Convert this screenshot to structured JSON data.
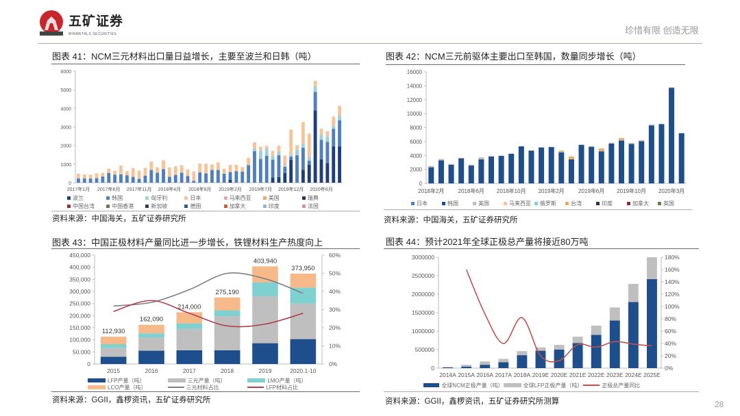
{
  "header": {
    "brand": "五矿证券",
    "brand_en": "MINMETALS SECURITIES",
    "tagline": "珍惜有限  创造无限",
    "logo_text": "MINMETALS"
  },
  "page_number": "28",
  "panels": [
    {
      "title": "图表 41：NCM三元材料出口量日益增长，主要至波兰和日韩（吨）",
      "source": "资料来源：中国海关，五矿证券研究所"
    },
    {
      "title": "图表 42：NCM三元前驱体主要出口至韩国，数量同步增长（吨）",
      "source": "资料来源：中国海关，五矿证券研究所"
    },
    {
      "title": "图表 43：中国正极材料产量同比进一步增长，铁锂材料生产热度向上",
      "source": "资料来源：GGII，鑫椤资讯，五矿证券研究所"
    },
    {
      "title": "图表 44：预计2021年全球正极总产量将接近80万吨",
      "source": "资料来源：GGII，鑫椤资讯，五矿证券研究所测算"
    }
  ],
  "chart_data": [
    {
      "type": "bar",
      "stacked": true,
      "ylim": [
        0,
        6000
      ],
      "yticks": [
        "0",
        "1000",
        "2000",
        "3000",
        "4000",
        "5000",
        "6000"
      ],
      "tick_labels": [
        "2017年1月",
        "2017年6月",
        "2017年11月",
        "2018年4月",
        "2018年9月",
        "2019年2月",
        "2019年7月",
        "2019年12月",
        "2020年6月"
      ],
      "legend_placement": "bottom",
      "legend": [
        {
          "name": "波兰",
          "color": "#1f3f7a"
        },
        {
          "name": "韩国",
          "color": "#4f7fbf"
        },
        {
          "name": "匈牙利",
          "color": "#9fd0d8"
        },
        {
          "name": "日本",
          "color": "#f5c49a"
        },
        {
          "name": "马来西亚",
          "color": "#e6a3ad"
        },
        {
          "name": "美国",
          "color": "#f0a860"
        },
        {
          "name": "瑞典",
          "color": "#2a3550"
        },
        {
          "name": "中国台湾",
          "color": "#a0303a"
        },
        {
          "name": "中国香港",
          "color": "#6b7b50"
        },
        {
          "name": "新加坡",
          "color": "#3a3a60"
        },
        {
          "name": "德国",
          "color": "#2d5f8a"
        },
        {
          "name": "加拿大",
          "color": "#c8603a"
        },
        {
          "name": "印度",
          "color": "#8fb0e0"
        },
        {
          "name": "法国",
          "color": "#d890a0"
        }
      ],
      "series": [
        {
          "name": "波兰",
          "color": "#1f3f7a",
          "values": [
            0,
            0,
            0,
            0,
            0,
            0,
            0,
            0,
            0,
            0,
            0,
            0,
            0,
            0,
            0,
            0,
            0,
            0,
            0,
            0,
            0,
            0,
            0,
            0,
            0,
            150,
            0,
            0,
            0,
            0,
            0,
            0,
            280,
            300,
            520,
            1230,
            0,
            680,
            960,
            3880,
            1260,
            1060,
            1950,
            1950
          ]
        },
        {
          "name": "韩国",
          "color": "#4f7fbf",
          "values": [
            230,
            230,
            230,
            240,
            330,
            520,
            430,
            450,
            400,
            310,
            210,
            380,
            680,
            540,
            730,
            320,
            420,
            540,
            360,
            100,
            550,
            500,
            680,
            680,
            480,
            420,
            620,
            600,
            940,
            1700,
            1270,
            1450,
            960,
            1180,
            330,
            170,
            1480,
            1200,
            220,
            1000,
            1040,
            1130,
            950,
            1400
          ]
        },
        {
          "name": "匈牙利",
          "color": "#9fd0d8",
          "values": [
            0,
            0,
            0,
            0,
            0,
            0,
            0,
            0,
            0,
            0,
            0,
            0,
            0,
            0,
            0,
            0,
            0,
            0,
            0,
            0,
            0,
            0,
            0,
            0,
            0,
            0,
            0,
            0,
            0,
            150,
            450,
            400,
            200,
            200,
            100,
            100,
            300,
            200,
            200,
            300,
            300,
            300,
            150,
            300
          ]
        },
        {
          "name": "日本",
          "color": "#f5c49a",
          "values": [
            250,
            220,
            200,
            260,
            200,
            240,
            210,
            470,
            220,
            470,
            440,
            420,
            450,
            290,
            470,
            500,
            460,
            400,
            360,
            500,
            480,
            520,
            300,
            410,
            270,
            390,
            340,
            240,
            400,
            330,
            210,
            130,
            280,
            310,
            510,
            1360,
            240,
            1180,
            1260,
            300,
            300,
            280,
            510,
            480
          ]
        }
      ]
    },
    {
      "type": "bar",
      "stacked": true,
      "ylim": [
        0,
        16000
      ],
      "yticks": [
        "0",
        "2000",
        "4000",
        "6000",
        "8000",
        "10000",
        "12000",
        "14000",
        "16000"
      ],
      "tick_labels": [
        "2018年2月",
        "2018年6月",
        "2018年10月",
        "2019年2月",
        "2019年6月",
        "2019年10月",
        "2020年3月"
      ],
      "legend_placement": "bottom",
      "legend": [
        {
          "name": "日本",
          "color": "#4f7fbf"
        },
        {
          "name": "韩国",
          "color": "#1f4e8c"
        },
        {
          "name": "美国",
          "color": "#bfbfbf"
        },
        {
          "name": "马来西亚",
          "color": "#f5c49a"
        },
        {
          "name": "俄罗斯",
          "color": "#7fd1d1"
        },
        {
          "name": "台湾",
          "color": "#f0a860"
        },
        {
          "name": "印度",
          "color": "#2a3550"
        },
        {
          "name": "加拿大",
          "color": "#8a2a3a"
        },
        {
          "name": "英国",
          "color": "#6b7b50"
        }
      ],
      "series": [
        {
          "name": "韩国",
          "color": "#1f4e8c",
          "values": [
            2300,
            3300,
            2650,
            3600,
            2550,
            3450,
            3850,
            3950,
            4250,
            5300,
            4700,
            5150,
            5200,
            4450,
            3450,
            5500,
            5250,
            4600,
            5700,
            6150,
            5650,
            6050,
            8300,
            8500,
            13700,
            7200
          ]
        },
        {
          "name": "美国",
          "color": "#bfbfbf",
          "values": [
            200,
            200,
            150,
            50,
            150,
            300,
            100,
            50,
            0,
            50,
            0,
            0,
            50,
            150,
            0,
            100,
            50,
            100,
            150,
            100,
            150,
            150,
            150,
            50,
            100,
            0
          ]
        },
        {
          "name": "台湾",
          "color": "#f0a860",
          "values": [
            0,
            0,
            0,
            0,
            0,
            0,
            0,
            0,
            0,
            0,
            0,
            0,
            0,
            100,
            400,
            0,
            0,
            300,
            0,
            250,
            0,
            0,
            0,
            0,
            0,
            0
          ]
        }
      ]
    },
    {
      "type": "bar",
      "stacked": true,
      "categories": [
        "2015",
        "2016",
        "2017",
        "2018",
        "2019",
        "2020.1-10"
      ],
      "ylim": [
        0,
        450000
      ],
      "yticks": [
        "0",
        "50,000",
        "100,000",
        "150,000",
        "200,000",
        "250,000",
        "300,000",
        "350,000",
        "400,000",
        "450,000"
      ],
      "y2lim": [
        0,
        0.6
      ],
      "y2ticks": [
        "0%",
        "10%",
        "20%",
        "30%",
        "40%",
        "50%",
        "60%"
      ],
      "totals": [
        "112,930",
        "162,090",
        "214,000",
        "275,190",
        "403,940",
        "373,950"
      ],
      "legend_placement": "bottom",
      "series": [
        {
          "name": "LFP产量（吨）",
          "color": "#1f4e8c",
          "values": [
            30000,
            55000,
            57000,
            57000,
            86000,
            103000
          ]
        },
        {
          "name": "三元产量（吨）",
          "color": "#bfbfbf",
          "values": [
            36000,
            55000,
            88000,
            141000,
            194000,
            147000
          ]
        },
        {
          "name": "LMO产量（吨）",
          "color": "#7fd1d1",
          "values": [
            16000,
            17000,
            23000,
            24000,
            58000,
            66000
          ]
        },
        {
          "name": "LCO产量（吨）",
          "color": "#f8b98a",
          "values": [
            30930,
            35090,
            46000,
            53190,
            65940,
            57950
          ]
        }
      ],
      "lines": [
        {
          "name": "三元材料占比",
          "color": "#7f7f7f",
          "axis": "right",
          "values": [
            0.32,
            0.34,
            0.41,
            0.5,
            0.47,
            0.39
          ]
        },
        {
          "name": "LFP材料占比",
          "color": "#b04050",
          "axis": "right",
          "values": [
            0.29,
            0.35,
            0.28,
            0.21,
            0.22,
            0.28
          ]
        }
      ]
    },
    {
      "type": "bar",
      "stacked": true,
      "categories": [
        "2014A",
        "2015A",
        "2016A",
        "2017A",
        "2018A",
        "2019E",
        "2020E",
        "2021E",
        "2022E",
        "2023E",
        "2024E",
        "2025E"
      ],
      "ylim": [
        0,
        3000000
      ],
      "yticks": [
        "0",
        "500000",
        "1000000",
        "1500000",
        "2000000",
        "2500000",
        "3000000"
      ],
      "y2lim": [
        0,
        1.8
      ],
      "y2ticks": [
        "0%",
        "20%",
        "40%",
        "60%",
        "80%",
        "100%",
        "120%",
        "140%",
        "160%",
        "180%"
      ],
      "legend_placement": "bottom",
      "series": [
        {
          "name": "全球NCM正极产量（吨）",
          "color": "#1f4e8c",
          "values": [
            20000,
            40000,
            90000,
            160000,
            350000,
            470000,
            500000,
            680000,
            900000,
            1290000,
            1790000,
            2410000
          ]
        },
        {
          "name": "全球LFP正极产量（吨）",
          "color": "#bfbfbf",
          "values": [
            10000,
            50000,
            90000,
            90000,
            110000,
            90000,
            130000,
            170000,
            250000,
            350000,
            490000,
            590000
          ]
        }
      ],
      "lines": [
        {
          "name": "正极总产量同比",
          "color": "#c0504d",
          "axis": "right",
          "values": [
            null,
            1.6,
            0.88,
            0.4,
            0.82,
            0.2,
            0.12,
            0.38,
            0.34,
            0.43,
            0.39,
            0.36
          ]
        }
      ]
    }
  ]
}
